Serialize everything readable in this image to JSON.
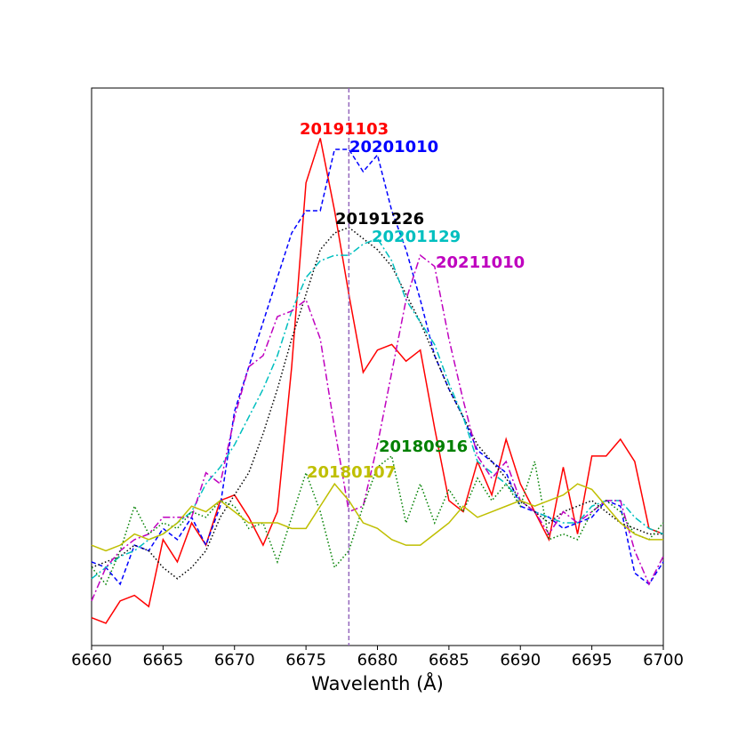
{
  "chart_data": {
    "type": "line",
    "x_label": "Wavelenth (Å)",
    "xlim": [
      6660,
      6700
    ],
    "xticks": [
      6660,
      6665,
      6670,
      6675,
      6680,
      6685,
      6690,
      6695,
      6700
    ],
    "ylim": [
      0,
      1
    ],
    "vline": {
      "x": 6678,
      "color": "#9467bd",
      "linestyle": "dashed"
    },
    "x": [
      6660,
      6661,
      6662,
      6663,
      6664,
      6665,
      6666,
      6667,
      6668,
      6669,
      6670,
      6671,
      6672,
      6673,
      6674,
      6675,
      6676,
      6677,
      6678,
      6679,
      6680,
      6681,
      6682,
      6683,
      6684,
      6685,
      6686,
      6687,
      6688,
      6689,
      6690,
      6691,
      6692,
      6693,
      6694,
      6695,
      6696,
      6697,
      6698,
      6699,
      6700
    ],
    "series": [
      {
        "name": "20191103",
        "color": "#ff0000",
        "linestyle": "solid",
        "values": [
          0.05,
          0.04,
          0.08,
          0.09,
          0.07,
          0.19,
          0.15,
          0.22,
          0.18,
          0.26,
          0.27,
          0.23,
          0.18,
          0.24,
          0.5,
          0.83,
          0.91,
          0.78,
          0.63,
          0.49,
          0.53,
          0.54,
          0.51,
          0.53,
          0.39,
          0.26,
          0.24,
          0.33,
          0.27,
          0.37,
          0.29,
          0.24,
          0.19,
          0.32,
          0.2,
          0.34,
          0.34,
          0.37,
          0.33,
          0.21,
          0.2
        ]
      },
      {
        "name": "20201010",
        "color": "#0000ff",
        "linestyle": "dashed",
        "values": [
          0.15,
          0.14,
          0.11,
          0.18,
          0.17,
          0.21,
          0.19,
          0.23,
          0.18,
          0.25,
          0.42,
          0.5,
          0.58,
          0.66,
          0.74,
          0.78,
          0.78,
          0.89,
          0.89,
          0.85,
          0.88,
          0.78,
          0.71,
          0.62,
          0.52,
          0.46,
          0.41,
          0.35,
          0.33,
          0.31,
          0.25,
          0.24,
          0.23,
          0.21,
          0.22,
          0.23,
          0.26,
          0.25,
          0.13,
          0.11,
          0.15
        ]
      },
      {
        "name": "20191226",
        "color": "#000000",
        "linestyle": "dotted",
        "values": [
          0.14,
          0.15,
          0.16,
          0.18,
          0.17,
          0.14,
          0.12,
          0.14,
          0.17,
          0.23,
          0.27,
          0.31,
          0.38,
          0.46,
          0.55,
          0.63,
          0.71,
          0.74,
          0.75,
          0.73,
          0.71,
          0.68,
          0.63,
          0.58,
          0.52,
          0.46,
          0.41,
          0.36,
          0.33,
          0.3,
          0.26,
          0.24,
          0.22,
          0.24,
          0.25,
          0.26,
          0.24,
          0.22,
          0.21,
          0.2,
          0.2
        ]
      },
      {
        "name": "20201129",
        "color": "#00bfbf",
        "linestyle": "dashdot",
        "values": [
          0.12,
          0.14,
          0.16,
          0.17,
          0.19,
          0.2,
          0.22,
          0.24,
          0.29,
          0.32,
          0.36,
          0.41,
          0.46,
          0.52,
          0.6,
          0.66,
          0.69,
          0.7,
          0.7,
          0.72,
          0.73,
          0.69,
          0.62,
          0.58,
          0.54,
          0.47,
          0.41,
          0.33,
          0.31,
          0.29,
          0.26,
          0.24,
          0.23,
          0.22,
          0.22,
          0.25,
          0.26,
          0.26,
          0.23,
          0.21,
          0.2
        ]
      },
      {
        "name": "20211010",
        "color": "#bf00bf",
        "linestyle": "dashdot",
        "values": [
          0.08,
          0.14,
          0.17,
          0.19,
          0.2,
          0.23,
          0.23,
          0.23,
          0.31,
          0.29,
          0.41,
          0.5,
          0.52,
          0.59,
          0.6,
          0.62,
          0.55,
          0.39,
          0.24,
          0.25,
          0.36,
          0.49,
          0.62,
          0.7,
          0.68,
          0.55,
          0.44,
          0.34,
          0.3,
          0.33,
          0.26,
          0.24,
          0.2,
          0.24,
          0.22,
          0.24,
          0.26,
          0.26,
          0.17,
          0.11,
          0.16
        ]
      },
      {
        "name": "20180916",
        "color": "#008000",
        "linestyle": "dotted",
        "values": [
          0.14,
          0.11,
          0.17,
          0.25,
          0.2,
          0.22,
          0.21,
          0.24,
          0.23,
          0.26,
          0.25,
          0.21,
          0.22,
          0.15,
          0.23,
          0.31,
          0.24,
          0.14,
          0.17,
          0.25,
          0.32,
          0.34,
          0.22,
          0.29,
          0.22,
          0.28,
          0.24,
          0.3,
          0.26,
          0.29,
          0.25,
          0.33,
          0.19,
          0.2,
          0.19,
          0.24,
          0.26,
          0.24,
          0.2,
          0.19,
          0.22
        ]
      },
      {
        "name": "20180107",
        "color": "#bfbf00",
        "linestyle": "solid",
        "values": [
          0.18,
          0.17,
          0.18,
          0.2,
          0.19,
          0.2,
          0.22,
          0.25,
          0.24,
          0.26,
          0.24,
          0.22,
          0.22,
          0.22,
          0.21,
          0.21,
          0.25,
          0.29,
          0.26,
          0.22,
          0.21,
          0.19,
          0.18,
          0.18,
          0.2,
          0.22,
          0.25,
          0.23,
          0.24,
          0.25,
          0.26,
          0.25,
          0.26,
          0.27,
          0.29,
          0.28,
          0.25,
          0.22,
          0.2,
          0.19,
          0.19
        ]
      }
    ]
  }
}
